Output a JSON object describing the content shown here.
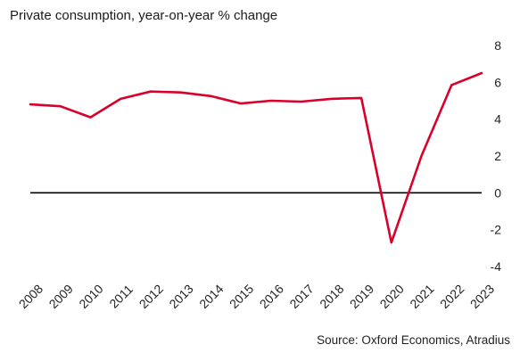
{
  "chart_data": {
    "type": "line",
    "title": "Private consumption, year-on-year % change",
    "source": "Source: Oxford Economics, Atradius",
    "x": [
      "2008",
      "2009",
      "2010",
      "2011",
      "2012",
      "2013",
      "2014",
      "2015",
      "2016",
      "2017",
      "2018",
      "2019",
      "2020",
      "2021",
      "2022",
      "2023"
    ],
    "series": [
      {
        "values": [
          4.8,
          4.7,
          4.1,
          5.1,
          5.5,
          5.45,
          5.25,
          4.85,
          5.0,
          4.95,
          5.1,
          5.15,
          -2.7,
          2.0,
          5.85,
          6.5
        ]
      }
    ],
    "yticks": [
      8,
      6,
      4,
      2,
      0,
      -2,
      -4
    ],
    "ylim": [
      -4,
      8
    ],
    "y_axis_position": "right",
    "x_label_rotation": -45,
    "zero_line": true,
    "grid": false,
    "line_color": "#d9002a",
    "zero_line_color": "#000000"
  }
}
